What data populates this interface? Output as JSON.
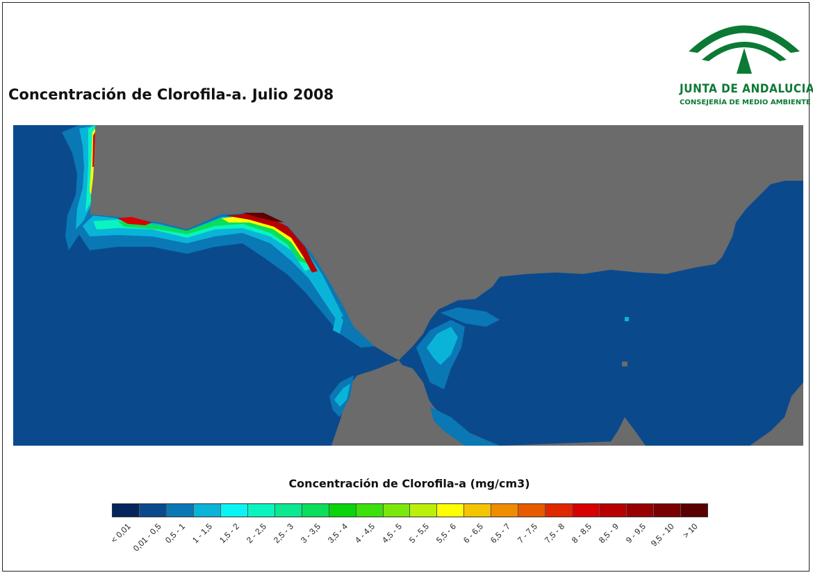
{
  "title": "Concentración de Clorofila-a. Julio 2008",
  "logo": {
    "org": "JUNTA DE ANDALUCIA",
    "dept": "CONSEJERÍA DE MEDIO AMBIENTE",
    "color": "#0c7a34"
  },
  "map": {
    "land_color": "#6b6b6b",
    "sea_color": "#0a4a8c"
  },
  "legend": {
    "title": "Concentración de Clorofila-a (mg/cm3)",
    "classes": [
      {
        "label": "< 0,01",
        "color": "#06255c"
      },
      {
        "label": "0,01 - 0,5",
        "color": "#0a4a8c"
      },
      {
        "label": "0,5 - 1",
        "color": "#0a78b4"
      },
      {
        "label": "1 - 1,5",
        "color": "#0ab4d8"
      },
      {
        "label": "1,5 - 2",
        "color": "#0af4f4"
      },
      {
        "label": "2 - 2,5",
        "color": "#0af4c0"
      },
      {
        "label": "2,5 - 3",
        "color": "#0ae890"
      },
      {
        "label": "3 - 3,5",
        "color": "#0ade5a"
      },
      {
        "label": "3,5 - 4",
        "color": "#0ad40a"
      },
      {
        "label": "4 - 4,5",
        "color": "#3ce00a"
      },
      {
        "label": "4,5 - 5",
        "color": "#7ae80a"
      },
      {
        "label": "5 - 5,5",
        "color": "#baf00a"
      },
      {
        "label": "5,5 - 6",
        "color": "#ffff00"
      },
      {
        "label": "6 - 6,5",
        "color": "#f4c400"
      },
      {
        "label": "6,5 - 7",
        "color": "#f08c00"
      },
      {
        "label": "7 - 7,5",
        "color": "#e85a00"
      },
      {
        "label": "7,5 - 8",
        "color": "#e02800"
      },
      {
        "label": "8 - 8,5",
        "color": "#d80000"
      },
      {
        "label": "8,5 - 9",
        "color": "#b80000"
      },
      {
        "label": "9 - 9,5",
        "color": "#980000"
      },
      {
        "label": "9,5 - 10",
        "color": "#7a0000"
      },
      {
        "label": "> 10",
        "color": "#5a0000"
      }
    ]
  }
}
